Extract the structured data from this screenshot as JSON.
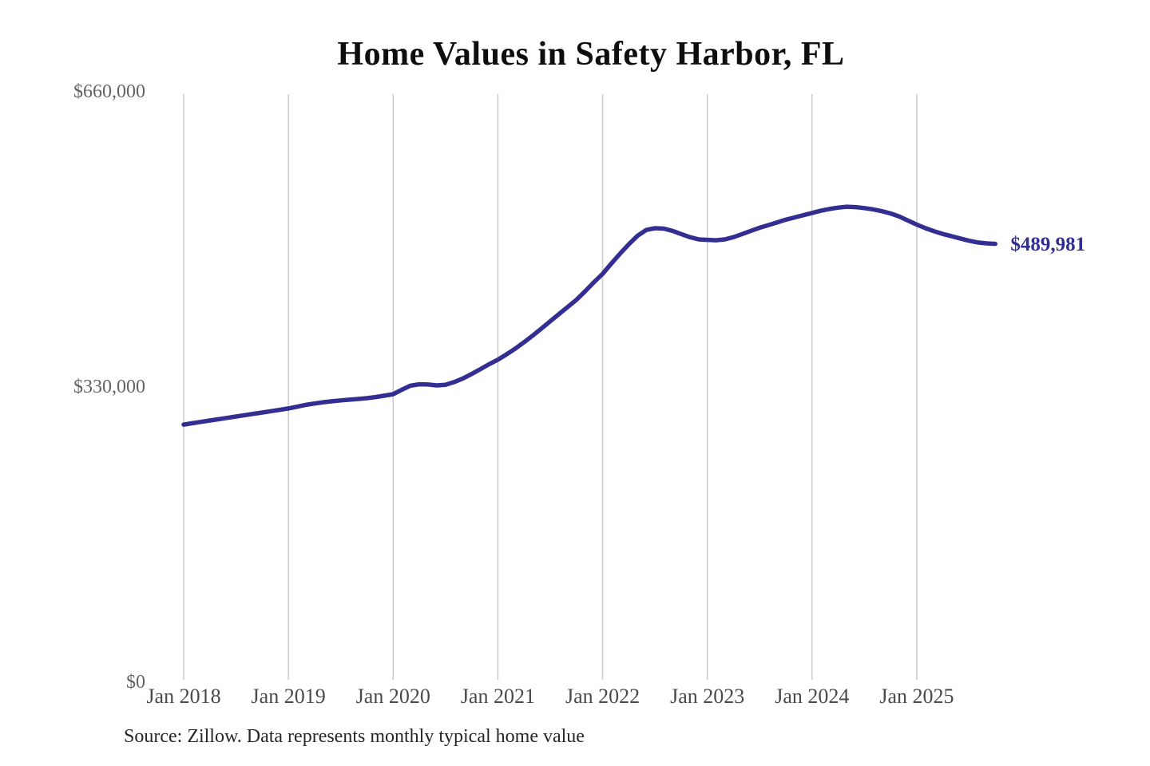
{
  "page": {
    "background_color": "#ffffff"
  },
  "chart_data": {
    "type": "line",
    "title": "Home Values in Safety Harbor, FL",
    "xlabel": "",
    "ylabel": "",
    "ylim": [
      0,
      660000
    ],
    "grid": "vertical-only",
    "y_tick_labels": [
      {
        "label": "$660,000",
        "value": 660000
      },
      {
        "label": "$330,000",
        "value": 330000
      },
      {
        "label": "$0",
        "value": 0
      }
    ],
    "x_tick_labels": [
      "Jan 2018",
      "Jan 2019",
      "Jan 2020",
      "Jan 2021",
      "Jan 2022",
      "Jan 2023",
      "Jan 2024",
      "Jan 2025"
    ],
    "frequency": "monthly",
    "categories": [
      "2018-01",
      "2018-02",
      "2018-03",
      "2018-04",
      "2018-05",
      "2018-06",
      "2018-07",
      "2018-08",
      "2018-09",
      "2018-10",
      "2018-11",
      "2018-12",
      "2019-01",
      "2019-02",
      "2019-03",
      "2019-04",
      "2019-05",
      "2019-06",
      "2019-07",
      "2019-08",
      "2019-09",
      "2019-10",
      "2019-11",
      "2019-12",
      "2020-01",
      "2020-02",
      "2020-03",
      "2020-04",
      "2020-05",
      "2020-06",
      "2020-07",
      "2020-08",
      "2020-09",
      "2020-10",
      "2020-11",
      "2020-12",
      "2021-01",
      "2021-02",
      "2021-03",
      "2021-04",
      "2021-05",
      "2021-06",
      "2021-07",
      "2021-08",
      "2021-09",
      "2021-10",
      "2021-11",
      "2021-12",
      "2022-01",
      "2022-02",
      "2022-03",
      "2022-04",
      "2022-05",
      "2022-06",
      "2022-07",
      "2022-08",
      "2022-09",
      "2022-10",
      "2022-11",
      "2022-12",
      "2023-01",
      "2023-02",
      "2023-03",
      "2023-04",
      "2023-05",
      "2023-06",
      "2023-07",
      "2023-08",
      "2023-09",
      "2023-10",
      "2023-11",
      "2023-12",
      "2024-01",
      "2024-02",
      "2024-03",
      "2024-04",
      "2024-05",
      "2024-06",
      "2024-07",
      "2024-08",
      "2024-09",
      "2024-10",
      "2024-11",
      "2024-12",
      "2025-01",
      "2025-02",
      "2025-03",
      "2025-04",
      "2025-05",
      "2025-06",
      "2025-07",
      "2025-08",
      "2025-09",
      "2025-10"
    ],
    "series": [
      {
        "name": "Typical home value",
        "color": "#332e91",
        "values": [
          288000,
          289500,
          291000,
          292500,
          294000,
          295500,
          297000,
          298500,
          300000,
          301500,
          303000,
          304500,
          306000,
          308000,
          310000,
          311500,
          313000,
          314000,
          315000,
          315800,
          316600,
          317500,
          318800,
          320300,
          322000,
          327000,
          331500,
          333000,
          332800,
          331800,
          332500,
          335500,
          339500,
          344500,
          350000,
          355500,
          360500,
          366500,
          373000,
          380000,
          387500,
          395500,
          403500,
          411500,
          419500,
          427500,
          437000,
          447000,
          456500,
          468000,
          479000,
          489500,
          499000,
          505500,
          507500,
          507000,
          504500,
          501000,
          497500,
          495000,
          494500,
          494000,
          495000,
          497500,
          501000,
          504500,
          508000,
          511000,
          514000,
          517000,
          519500,
          522000,
          524500,
          527000,
          529000,
          530500,
          531500,
          531000,
          530000,
          528500,
          526500,
          524000,
          520500,
          516000,
          511500,
          507500,
          504000,
          501000,
          498500,
          496000,
          493500,
          491500,
          490500,
          489981
        ]
      }
    ],
    "end_value_label": "$489,981",
    "colors": {
      "line": "#332e91",
      "end_label": "#302e93",
      "gridline": "#cbcbcb",
      "title": "#0e0e0e",
      "y_tick_text": "#636363",
      "x_tick_text": "#4a4a4a",
      "source_text": "#262626"
    }
  },
  "source": {
    "note": "Source: Zillow. Data represents monthly typical home value"
  }
}
